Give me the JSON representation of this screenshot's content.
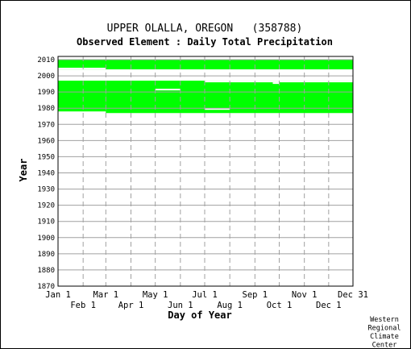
{
  "chart_data": {
    "type": "heatmap",
    "title": "UPPER OLALLA, OREGON   (358788)",
    "subtitle": "Observed Element : Daily Total Precipitation",
    "xlabel": "Day of Year",
    "ylabel": "Year",
    "credit": [
      "Western",
      "Regional",
      "Climate",
      "Center"
    ],
    "x_range_day_of_year": [
      1,
      365
    ],
    "ylim": [
      1870,
      2012
    ],
    "grid": true,
    "colors": {
      "data_present": "#00ff00",
      "grid": "#a0a0a0",
      "frame": "#000000"
    },
    "x_ticks": [
      {
        "label": "Jan 1",
        "day": 1,
        "row": 0
      },
      {
        "label": "Feb 1",
        "day": 32,
        "row": 1
      },
      {
        "label": "Mar 1",
        "day": 60,
        "row": 0
      },
      {
        "label": "Apr 1",
        "day": 91,
        "row": 1
      },
      {
        "label": "May 1",
        "day": 121,
        "row": 0
      },
      {
        "label": "Jun 1",
        "day": 152,
        "row": 1
      },
      {
        "label": "Jul 1",
        "day": 182,
        "row": 0
      },
      {
        "label": "Aug 1",
        "day": 213,
        "row": 1
      },
      {
        "label": "Sep 1",
        "day": 244,
        "row": 0
      },
      {
        "label": "Oct 1",
        "day": 274,
        "row": 1
      },
      {
        "label": "Nov 1",
        "day": 305,
        "row": 0
      },
      {
        "label": "Dec 1",
        "day": 335,
        "row": 1
      },
      {
        "label": "Dec 31",
        "day": 365,
        "row": 0
      }
    ],
    "y_ticks": [
      "1870",
      "1880",
      "1890",
      "1900",
      "1910",
      "1920",
      "1930",
      "1940",
      "1950",
      "1960",
      "1970",
      "1980",
      "1990",
      "2000",
      "2010"
    ],
    "coverage": [
      {
        "day_start": 1,
        "day_end": 60,
        "year_start": 1978,
        "year_end": 1997
      },
      {
        "day_start": 60,
        "day_end": 365,
        "year_start": 1977,
        "year_end": 1997
      },
      {
        "day_start": 1,
        "day_end": 365,
        "year_start": 2004,
        "year_end": 2010
      },
      {
        "day_start": 1,
        "day_end": 60,
        "year_start": 2005,
        "year_end": 2004
      }
    ],
    "gaps": [
      {
        "day_start": 1,
        "day_end": 60,
        "year_start": 2004,
        "year_end": 2005
      },
      {
        "day_start": 121,
        "day_end": 152,
        "year_start": 1991,
        "year_end": 1992
      },
      {
        "day_start": 182,
        "day_end": 213,
        "year_start": 1979,
        "year_end": 1980
      },
      {
        "day_start": 182,
        "day_end": 365,
        "year_start": 1996,
        "year_end": 1997
      },
      {
        "day_start": 266,
        "day_end": 274,
        "year_start": 1995,
        "year_end": 1996
      }
    ]
  }
}
